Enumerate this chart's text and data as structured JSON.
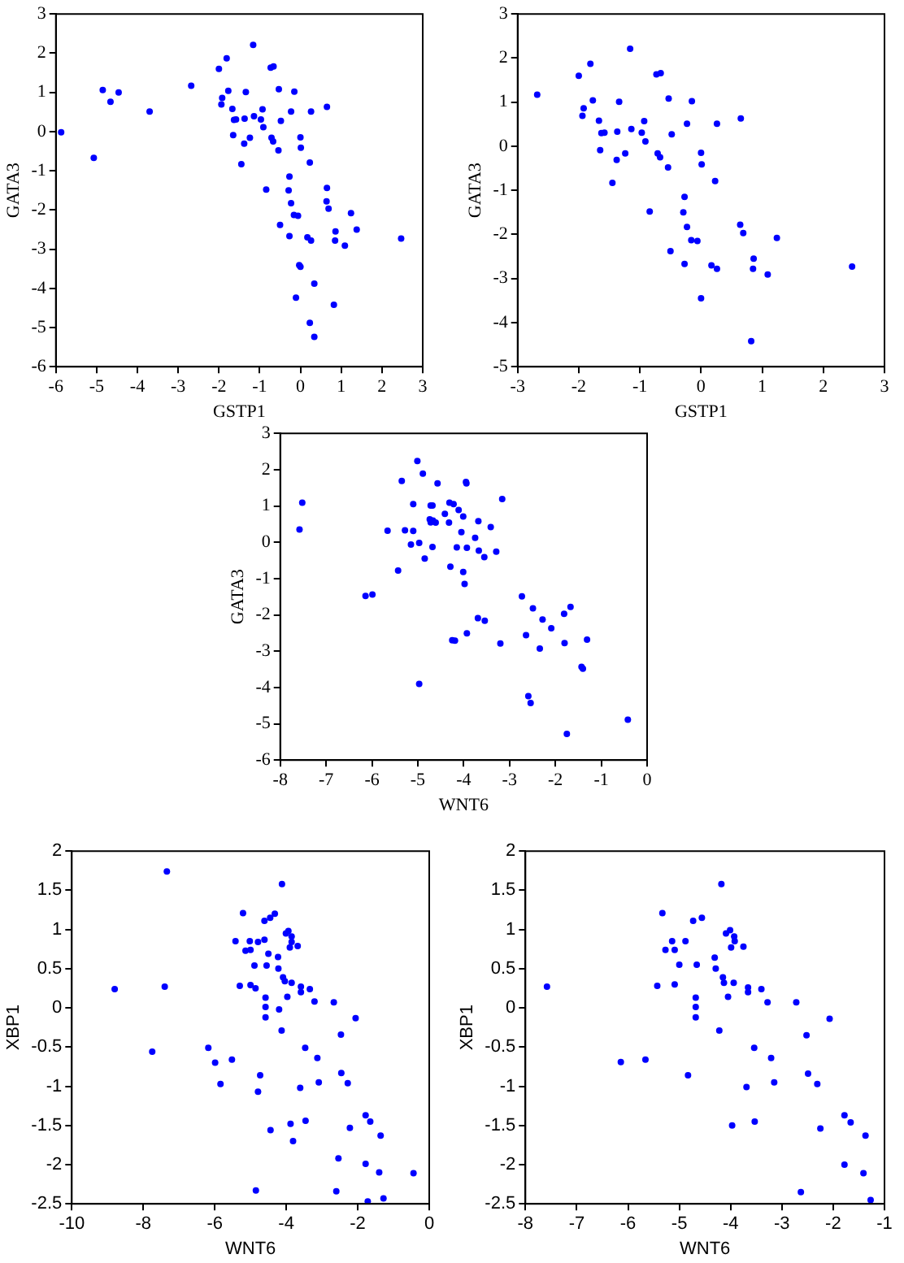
{
  "chart_data": [
    {
      "type": "scatter",
      "xlabel": "GSTP1",
      "ylabel": "GATA3",
      "color": "#0000ff",
      "marker": "circle",
      "grid": false,
      "legend": false,
      "xlim": [
        -6,
        3
      ],
      "ylim": [
        -6,
        3
      ],
      "xticks": [
        -6,
        -5,
        -4,
        -3,
        -2,
        -1,
        0,
        1,
        2,
        3
      ],
      "yticks": [
        -6,
        -5,
        -4,
        -3,
        -2,
        -1,
        0,
        1,
        2,
        3
      ],
      "x": [
        -5.87,
        -5.07,
        -4.85,
        -4.66,
        -4.46,
        -3.7,
        -2.68,
        -2.0,
        -1.81,
        -1.94,
        -1.92,
        -1.77,
        -1.67,
        -1.63,
        -1.65,
        -1.58,
        -1.37,
        -1.34,
        -1.38,
        -1.45,
        -1.24,
        -1.16,
        -1.14,
        -0.97,
        -0.93,
        -0.91,
        -0.84,
        -0.73,
        -0.66,
        -0.71,
        -0.67,
        -0.54,
        -0.53,
        -0.48,
        -0.5,
        -0.27,
        -0.29,
        -0.23,
        -0.27,
        -0.23,
        -0.15,
        -0.16,
        -0.06,
        -0.11,
        0.0,
        0.01,
        -0.03,
        0.0,
        0.17,
        0.26,
        0.23,
        0.26,
        0.23,
        0.34,
        0.34,
        0.65,
        0.65,
        0.64,
        0.69,
        0.82,
        0.85,
        0.86,
        1.09,
        1.24,
        1.38,
        2.47
      ],
      "values": [
        -0.02,
        -0.67,
        1.06,
        0.76,
        1.0,
        0.51,
        1.17,
        1.6,
        1.87,
        0.69,
        0.86,
        1.04,
        0.58,
        0.3,
        -0.09,
        0.31,
        0.33,
        1.01,
        -0.31,
        -0.83,
        -0.16,
        2.21,
        0.39,
        0.31,
        0.57,
        0.11,
        -1.48,
        1.63,
        1.66,
        -0.16,
        -0.25,
        -0.48,
        1.08,
        0.27,
        -2.38,
        -1.15,
        -1.5,
        -1.83,
        -2.67,
        0.51,
        1.02,
        -2.13,
        -2.15,
        -4.24,
        -0.15,
        -0.41,
        -3.41,
        -3.45,
        -2.7,
        -2.78,
        -0.79,
        0.51,
        -4.88,
        -5.24,
        -3.88,
        0.63,
        -1.44,
        -1.78,
        -1.97,
        -4.42,
        -2.78,
        -2.55,
        -2.91,
        -2.08,
        -2.5,
        -2.73
      ]
    },
    {
      "type": "scatter",
      "xlabel": "GSTP1",
      "ylabel": "GATA3",
      "color": "#0000ff",
      "marker": "circle",
      "grid": false,
      "legend": false,
      "xlim": [
        -3,
        3
      ],
      "ylim": [
        -5,
        3
      ],
      "xticks": [
        -3,
        -2,
        -1,
        0,
        1,
        2,
        3
      ],
      "yticks": [
        -5,
        -4,
        -3,
        -2,
        -1,
        0,
        1,
        2,
        3
      ],
      "x": [
        -2.68,
        -2.0,
        -1.81,
        -1.94,
        -1.92,
        -1.77,
        -1.67,
        -1.63,
        -1.65,
        -1.58,
        -1.37,
        -1.34,
        -1.38,
        -1.45,
        -1.24,
        -1.16,
        -1.14,
        -0.97,
        -0.93,
        -0.91,
        -0.84,
        -0.73,
        -0.66,
        -0.71,
        -0.67,
        -0.54,
        -0.53,
        -0.48,
        -0.5,
        -0.27,
        -0.29,
        -0.23,
        -0.27,
        -0.23,
        -0.15,
        -0.16,
        -0.06,
        0.0,
        0.01,
        0.0,
        0.17,
        0.26,
        0.23,
        0.26,
        0.65,
        0.64,
        0.69,
        0.82,
        0.85,
        0.86,
        1.09,
        1.24,
        2.47
      ],
      "values": [
        1.17,
        1.6,
        1.87,
        0.69,
        0.86,
        1.04,
        0.58,
        0.3,
        -0.09,
        0.31,
        0.33,
        1.01,
        -0.31,
        -0.83,
        -0.16,
        2.21,
        0.39,
        0.31,
        0.57,
        0.11,
        -1.48,
        1.63,
        1.66,
        -0.16,
        -0.25,
        -0.48,
        1.08,
        0.27,
        -2.38,
        -1.15,
        -1.5,
        -1.83,
        -2.67,
        0.51,
        1.02,
        -2.13,
        -2.15,
        -0.15,
        -0.41,
        -3.45,
        -2.7,
        -2.78,
        -0.79,
        0.51,
        0.63,
        -1.78,
        -1.97,
        -4.42,
        -2.78,
        -2.55,
        -2.91,
        -2.08,
        -2.73
      ]
    },
    {
      "type": "scatter",
      "xlabel": "WNT6",
      "ylabel": "GATA3",
      "color": "#0000ff",
      "marker": "circle",
      "grid": false,
      "legend": false,
      "xlim": [
        -8,
        0
      ],
      "ylim": [
        -6,
        3
      ],
      "xticks": [
        -8,
        -7,
        -6,
        -5,
        -4,
        -3,
        -2,
        -1,
        0
      ],
      "yticks": [
        -6,
        -5,
        -4,
        -3,
        -2,
        -1,
        0,
        1,
        2,
        3
      ],
      "x": [
        -7.58,
        -7.52,
        -6.14,
        -5.99,
        -5.66,
        -5.43,
        -5.35,
        -5.28,
        -5.15,
        -5.1,
        -5.1,
        -5.01,
        -4.97,
        -4.97,
        -4.89,
        -4.85,
        -4.74,
        -4.72,
        -4.68,
        -4.72,
        -4.67,
        -4.68,
        -4.61,
        -4.57,
        -4.41,
        -4.32,
        -4.31,
        -4.29,
        -4.22,
        -4.25,
        -4.19,
        -4.15,
        -4.11,
        -4.05,
        -4.01,
        -4.01,
        -3.98,
        -3.95,
        -3.94,
        -3.93,
        -3.93,
        -3.75,
        -3.68,
        -3.67,
        -3.69,
        -3.55,
        -3.54,
        -3.41,
        -3.29,
        -3.2,
        -3.16,
        -2.73,
        -2.64,
        -2.59,
        -2.54,
        -2.49,
        -2.34,
        -2.28,
        -2.09,
        -1.81,
        -1.8,
        -1.75,
        -1.67,
        -1.43,
        -1.4,
        -1.31,
        -0.42
      ],
      "values": [
        0.35,
        1.09,
        -1.48,
        -1.44,
        0.32,
        -0.78,
        1.69,
        0.33,
        -0.06,
        1.05,
        0.31,
        2.24,
        -0.02,
        -3.9,
        1.89,
        -0.45,
        0.63,
        1.01,
        1.01,
        0.55,
        0.6,
        -0.13,
        0.54,
        1.62,
        0.78,
        0.54,
        1.09,
        -0.67,
        1.05,
        -2.7,
        -2.71,
        -0.14,
        0.89,
        0.28,
        0.71,
        -0.82,
        -1.15,
        1.66,
        1.62,
        -0.15,
        -2.51,
        0.12,
        0.58,
        -0.23,
        -2.09,
        -0.41,
        -2.16,
        0.42,
        -0.26,
        -2.79,
        1.19,
        -1.49,
        -2.56,
        -4.24,
        -4.43,
        -1.82,
        -2.93,
        -2.13,
        -2.37,
        -1.97,
        -2.78,
        -5.28,
        -1.78,
        -3.43,
        -3.48,
        -2.68,
        -4.89
      ]
    },
    {
      "type": "scatter",
      "xlabel": "WNT6",
      "ylabel": "XBP1",
      "color": "#0000ff",
      "marker": "circle",
      "grid": false,
      "legend": false,
      "xlim": [
        -10,
        0
      ],
      "ylim": [
        -2.5,
        2
      ],
      "xticks": [
        -10,
        -8,
        -6,
        -4,
        -2,
        0
      ],
      "yticks": [
        -2.5,
        -2,
        -1.5,
        -1,
        -0.5,
        0,
        0.5,
        1,
        1.5,
        2
      ],
      "x": [
        -8.8,
        -7.34,
        -7.4,
        -7.75,
        -6.18,
        -5.99,
        -5.84,
        -5.52,
        -5.42,
        -5.3,
        -5.21,
        -5.14,
        -5.02,
        -5.0,
        -5.0,
        -4.89,
        -4.86,
        -4.85,
        -4.79,
        -4.73,
        -4.79,
        -4.61,
        -4.61,
        -4.58,
        -4.58,
        -4.58,
        -4.55,
        -4.5,
        -4.45,
        -4.44,
        -4.32,
        -4.23,
        -4.22,
        -4.2,
        -4.13,
        -4.12,
        -4.09,
        -4.04,
        -4.01,
        -3.97,
        -3.94,
        -3.9,
        -3.88,
        -3.85,
        -3.85,
        -3.85,
        -3.81,
        -3.68,
        -3.61,
        -3.59,
        -3.59,
        -3.47,
        -3.46,
        -3.34,
        -3.21,
        -3.13,
        -3.09,
        -2.67,
        -2.47,
        -2.46,
        -2.54,
        -2.6,
        -2.28,
        -2.22,
        -2.06,
        -1.78,
        -1.78,
        -1.65,
        -1.72,
        -1.4,
        -1.36,
        -1.28,
        -0.44
      ],
      "values": [
        0.24,
        1.74,
        0.27,
        -0.56,
        -0.51,
        -0.7,
        -0.97,
        -0.66,
        0.85,
        0.28,
        1.21,
        0.73,
        0.85,
        0.74,
        0.29,
        0.54,
        0.25,
        -2.33,
        0.84,
        -0.86,
        -1.07,
        0.87,
        1.11,
        0.13,
        0.01,
        -0.12,
        0.54,
        0.69,
        1.15,
        -1.56,
        1.2,
        0.65,
        0.5,
        -0.02,
        -0.29,
        1.58,
        0.39,
        0.34,
        0.95,
        0.14,
        0.98,
        0.77,
        -1.48,
        0.91,
        0.84,
        0.32,
        -1.7,
        0.79,
        -1.02,
        0.27,
        0.2,
        -0.51,
        -1.44,
        0.24,
        0.08,
        -0.64,
        -0.95,
        0.07,
        -0.34,
        -0.83,
        -1.92,
        -2.34,
        -0.96,
        -1.53,
        -0.13,
        -1.37,
        -1.99,
        -1.45,
        -2.47,
        -2.1,
        -1.63,
        -2.43,
        -2.11
      ]
    },
    {
      "type": "scatter",
      "xlabel": "WNT6",
      "ylabel": "XBP1",
      "color": "#0000ff",
      "marker": "circle",
      "grid": false,
      "legend": false,
      "xlim": [
        -8,
        -1
      ],
      "ylim": [
        -2.5,
        2
      ],
      "xticks": [
        -8,
        -7,
        -6,
        -5,
        -4,
        -3,
        -2,
        -1
      ],
      "yticks": [
        -2.5,
        -2,
        -1.5,
        -1,
        -0.5,
        0,
        0.5,
        1,
        1.5,
        2
      ],
      "x": [
        -7.58,
        -6.14,
        -5.66,
        -5.43,
        -5.33,
        -5.27,
        -5.14,
        -5.09,
        -5.09,
        -5.0,
        -4.88,
        -4.83,
        -4.73,
        -4.68,
        -4.68,
        -4.68,
        -4.66,
        -4.56,
        -4.31,
        -4.29,
        -4.22,
        -4.18,
        -4.15,
        -4.13,
        -4.09,
        -4.05,
        -4.01,
        -3.99,
        -3.97,
        -3.93,
        -3.92,
        -3.94,
        -3.75,
        -3.69,
        -3.66,
        -3.66,
        -3.54,
        -3.53,
        -3.4,
        -3.28,
        -3.21,
        -3.15,
        -2.72,
        -2.52,
        -2.49,
        -2.63,
        -2.31,
        -2.25,
        -2.07,
        -1.78,
        -1.78,
        -1.66,
        -1.41,
        -1.37,
        -1.27
      ],
      "values": [
        0.27,
        -0.69,
        -0.66,
        0.28,
        1.21,
        0.74,
        0.85,
        0.74,
        0.3,
        0.55,
        0.85,
        -0.86,
        1.11,
        0.13,
        0.01,
        -0.12,
        0.55,
        1.15,
        0.64,
        0.5,
        -0.29,
        1.58,
        0.39,
        0.32,
        0.95,
        0.14,
        0.99,
        0.77,
        -1.5,
        0.91,
        0.85,
        0.32,
        0.78,
        -1.01,
        0.26,
        0.2,
        -0.51,
        -1.45,
        0.24,
        0.07,
        -0.64,
        -0.95,
        0.07,
        -0.35,
        -0.84,
        -2.35,
        -0.97,
        -1.54,
        -0.14,
        -1.37,
        -2.0,
        -1.46,
        -2.11,
        -1.63,
        -2.45
      ]
    }
  ]
}
